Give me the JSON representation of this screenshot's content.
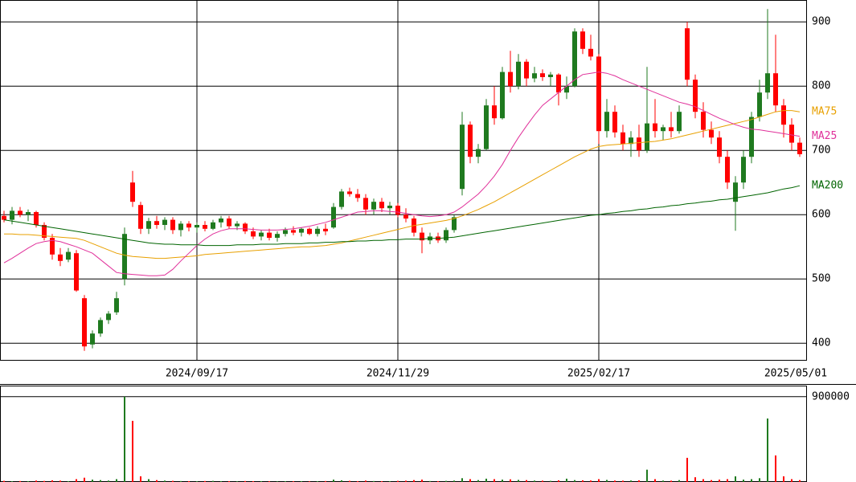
{
  "chart_data": [
    {
      "type": "candlestick",
      "categories": [
        null,
        null,
        null,
        null,
        null,
        null,
        null,
        null,
        null,
        null,
        null,
        null,
        null,
        null,
        null,
        null,
        null,
        null,
        null,
        null,
        null,
        null,
        null,
        null,
        "2024/09/17",
        null,
        null,
        null,
        null,
        null,
        null,
        null,
        null,
        null,
        null,
        null,
        null,
        null,
        null,
        null,
        null,
        null,
        null,
        null,
        null,
        null,
        null,
        null,
        null,
        "2024/11/29",
        null,
        null,
        null,
        null,
        null,
        null,
        null,
        null,
        null,
        null,
        null,
        null,
        null,
        null,
        null,
        null,
        null,
        null,
        null,
        null,
        null,
        null,
        null,
        null,
        "2025/02/17",
        null,
        null,
        null,
        null,
        null,
        null,
        null,
        null,
        null,
        null,
        null,
        null,
        null,
        null,
        null,
        null,
        null,
        null,
        null,
        null,
        null,
        null,
        null,
        null,
        "2025/05/01"
      ],
      "ohlc": [
        [
          598,
          606,
          588,
          592
        ],
        [
          592,
          612,
          585,
          606
        ],
        [
          606,
          612,
          596,
          600
        ],
        [
          600,
          608,
          590,
          604
        ],
        [
          604,
          606,
          580,
          584
        ],
        [
          584,
          588,
          560,
          564
        ],
        [
          564,
          570,
          530,
          538
        ],
        [
          538,
          548,
          520,
          528
        ],
        [
          530,
          548,
          526,
          542
        ],
        [
          540,
          545,
          480,
          482
        ],
        [
          470,
          475,
          388,
          395
        ],
        [
          398,
          420,
          392,
          415
        ],
        [
          415,
          440,
          410,
          436
        ],
        [
          436,
          450,
          430,
          446
        ],
        [
          448,
          480,
          444,
          470
        ],
        [
          500,
          580,
          490,
          570
        ],
        [
          650,
          668,
          612,
          620
        ],
        [
          615,
          620,
          570,
          578
        ],
        [
          578,
          595,
          570,
          590
        ],
        [
          590,
          598,
          578,
          584
        ],
        [
          584,
          596,
          576,
          592
        ],
        [
          592,
          596,
          570,
          576
        ],
        [
          576,
          590,
          566,
          586
        ],
        [
          586,
          590,
          574,
          580
        ],
        [
          580,
          588,
          572,
          584
        ],
        [
          584,
          590,
          574,
          578
        ],
        [
          578,
          592,
          576,
          588
        ],
        [
          588,
          598,
          580,
          594
        ],
        [
          594,
          598,
          578,
          582
        ],
        [
          582,
          590,
          576,
          586
        ],
        [
          586,
          588,
          570,
          574
        ],
        [
          574,
          580,
          562,
          566
        ],
        [
          566,
          576,
          560,
          572
        ],
        [
          572,
          578,
          560,
          564
        ],
        [
          564,
          574,
          558,
          570
        ],
        [
          570,
          580,
          566,
          576
        ],
        [
          576,
          582,
          568,
          572
        ],
        [
          572,
          580,
          566,
          578
        ],
        [
          578,
          580,
          568,
          570
        ],
        [
          570,
          582,
          566,
          578
        ],
        [
          578,
          586,
          568,
          574
        ],
        [
          580,
          618,
          578,
          612
        ],
        [
          612,
          640,
          608,
          636
        ],
        [
          636,
          642,
          628,
          632
        ],
        [
          632,
          640,
          620,
          626
        ],
        [
          626,
          632,
          600,
          608
        ],
        [
          608,
          625,
          600,
          620
        ],
        [
          620,
          626,
          604,
          610
        ],
        [
          610,
          620,
          600,
          614
        ],
        [
          614,
          618,
          596,
          600
        ],
        [
          600,
          610,
          588,
          594
        ],
        [
          594,
          598,
          566,
          572
        ],
        [
          572,
          580,
          540,
          560
        ],
        [
          560,
          572,
          554,
          566
        ],
        [
          566,
          572,
          556,
          560
        ],
        [
          560,
          580,
          556,
          576
        ],
        [
          576,
          600,
          572,
          596
        ],
        [
          640,
          760,
          630,
          740
        ],
        [
          740,
          745,
          680,
          690
        ],
        [
          690,
          710,
          680,
          702
        ],
        [
          702,
          780,
          700,
          770
        ],
        [
          770,
          800,
          740,
          750
        ],
        [
          750,
          830,
          748,
          822
        ],
        [
          822,
          855,
          790,
          800
        ],
        [
          800,
          850,
          795,
          838
        ],
        [
          838,
          842,
          800,
          812
        ],
        [
          812,
          830,
          806,
          820
        ],
        [
          820,
          826,
          808,
          814
        ],
        [
          814,
          822,
          800,
          818
        ],
        [
          818,
          820,
          770,
          790
        ],
        [
          790,
          815,
          780,
          800
        ],
        [
          800,
          890,
          798,
          885
        ],
        [
          885,
          890,
          850,
          858
        ],
        [
          858,
          880,
          840,
          846
        ],
        [
          846,
          850,
          710,
          730
        ],
        [
          730,
          780,
          720,
          760
        ],
        [
          760,
          770,
          720,
          728
        ],
        [
          728,
          740,
          700,
          710
        ],
        [
          710,
          730,
          690,
          720
        ],
        [
          720,
          740,
          690,
          700
        ],
        [
          700,
          830,
          696,
          742
        ],
        [
          742,
          780,
          720,
          730
        ],
        [
          730,
          740,
          716,
          736
        ],
        [
          736,
          760,
          720,
          730
        ],
        [
          730,
          770,
          726,
          760
        ],
        [
          890,
          900,
          800,
          810
        ],
        [
          810,
          818,
          750,
          760
        ],
        [
          760,
          775,
          720,
          732
        ],
        [
          732,
          745,
          710,
          720
        ],
        [
          720,
          730,
          680,
          690
        ],
        [
          690,
          700,
          640,
          650
        ],
        [
          620,
          660,
          575,
          650
        ],
        [
          650,
          700,
          640,
          690
        ],
        [
          690,
          760,
          680,
          752
        ],
        [
          752,
          810,
          745,
          790
        ],
        [
          790,
          920,
          780,
          820
        ],
        [
          820,
          880,
          760,
          770
        ],
        [
          770,
          780,
          720,
          740
        ],
        [
          740,
          750,
          700,
          712
        ],
        [
          712,
          720,
          690,
          694
        ]
      ],
      "up_color": "#1f7a1f",
      "down_color": "#ff0000",
      "series": [
        {
          "name": "MA75",
          "color": "#e8a000",
          "values": [
            570,
            570,
            569,
            569,
            568,
            567,
            566,
            565,
            564,
            563,
            560,
            555,
            550,
            545,
            540,
            537,
            535,
            534,
            533,
            532,
            532,
            533,
            534,
            535,
            536,
            538,
            539,
            540,
            541,
            542,
            543,
            544,
            545,
            546,
            547,
            548,
            549,
            550,
            550,
            551,
            552,
            554,
            556,
            559,
            562,
            565,
            568,
            571,
            574,
            577,
            580,
            583,
            585,
            587,
            589,
            591,
            594,
            598,
            603,
            608,
            614,
            620,
            627,
            634,
            641,
            648,
            655,
            662,
            669,
            676,
            683,
            690,
            696,
            702,
            706,
            708,
            709,
            710,
            711,
            712,
            713,
            714,
            716,
            718,
            721,
            724,
            727,
            730,
            733,
            736,
            739,
            742,
            745,
            748,
            752,
            756,
            760,
            762,
            762,
            760
          ]
        },
        {
          "name": "MA25",
          "color": "#e0309a",
          "values": [
            525,
            532,
            540,
            548,
            555,
            558,
            560,
            558,
            554,
            550,
            545,
            540,
            530,
            520,
            510,
            508,
            507,
            506,
            505,
            505,
            506,
            515,
            528,
            540,
            552,
            562,
            570,
            575,
            578,
            578,
            578,
            577,
            576,
            576,
            576,
            577,
            578,
            580,
            582,
            585,
            588,
            592,
            596,
            600,
            604,
            605,
            606,
            606,
            605,
            604,
            602,
            600,
            598,
            597,
            598,
            600,
            604,
            612,
            622,
            632,
            645,
            660,
            678,
            700,
            720,
            738,
            755,
            770,
            780,
            790,
            800,
            810,
            818,
            820,
            822,
            820,
            816,
            810,
            805,
            800,
            795,
            790,
            785,
            780,
            775,
            772,
            768,
            762,
            756,
            750,
            745,
            740,
            736,
            733,
            732,
            730,
            728,
            726,
            724,
            722
          ]
        },
        {
          "name": "MA200",
          "color": "#006400",
          "values": [
            592,
            590,
            588,
            586,
            584,
            582,
            580,
            578,
            576,
            574,
            572,
            570,
            568,
            566,
            564,
            562,
            560,
            558,
            556,
            555,
            554,
            554,
            553,
            553,
            553,
            552,
            552,
            552,
            552,
            553,
            553,
            553,
            554,
            554,
            554,
            555,
            555,
            555,
            556,
            556,
            557,
            557,
            558,
            558,
            559,
            559,
            560,
            560,
            561,
            561,
            562,
            562,
            562,
            563,
            563,
            564,
            565,
            567,
            569,
            571,
            573,
            575,
            577,
            579,
            581,
            583,
            585,
            587,
            589,
            591,
            593,
            595,
            597,
            599,
            600,
            602,
            603,
            605,
            606,
            608,
            609,
            611,
            612,
            614,
            615,
            617,
            618,
            620,
            621,
            623,
            624,
            626,
            628,
            630,
            632,
            634,
            637,
            640,
            642,
            645
          ]
        }
      ],
      "ylim": [
        374,
        934
      ],
      "yticks": [
        400,
        500,
        600,
        700,
        800,
        900
      ],
      "grid": true
    },
    {
      "type": "bar",
      "values": [
        12000,
        8000,
        10000,
        9000,
        15000,
        11000,
        18000,
        14000,
        9000,
        30000,
        45000,
        25000,
        20000,
        15000,
        30000,
        900000,
        645000,
        60000,
        30000,
        20000,
        15000,
        12000,
        10000,
        9000,
        8000,
        10000,
        12000,
        9000,
        8000,
        7000,
        10000,
        8000,
        9000,
        7000,
        6000,
        8000,
        7000,
        9000,
        6000,
        8000,
        10000,
        25000,
        18000,
        12000,
        9000,
        15000,
        10000,
        8000,
        9000,
        12000,
        14000,
        20000,
        25000,
        10000,
        9000,
        12000,
        15000,
        40000,
        30000,
        20000,
        35000,
        30000,
        25000,
        28000,
        22000,
        20000,
        15000,
        14000,
        12000,
        18000,
        35000,
        20000,
        18000,
        16000,
        30000,
        22000,
        15000,
        14000,
        16000,
        18000,
        130000,
        30000,
        15000,
        14000,
        20000,
        255000,
        50000,
        30000,
        20000,
        25000,
        30000,
        60000,
        25000,
        30000,
        40000,
        670000,
        280000,
        60000,
        30000,
        20000
      ],
      "ylim": [
        0,
        1000000
      ],
      "yticks": [
        900000
      ],
      "grid": true
    }
  ]
}
